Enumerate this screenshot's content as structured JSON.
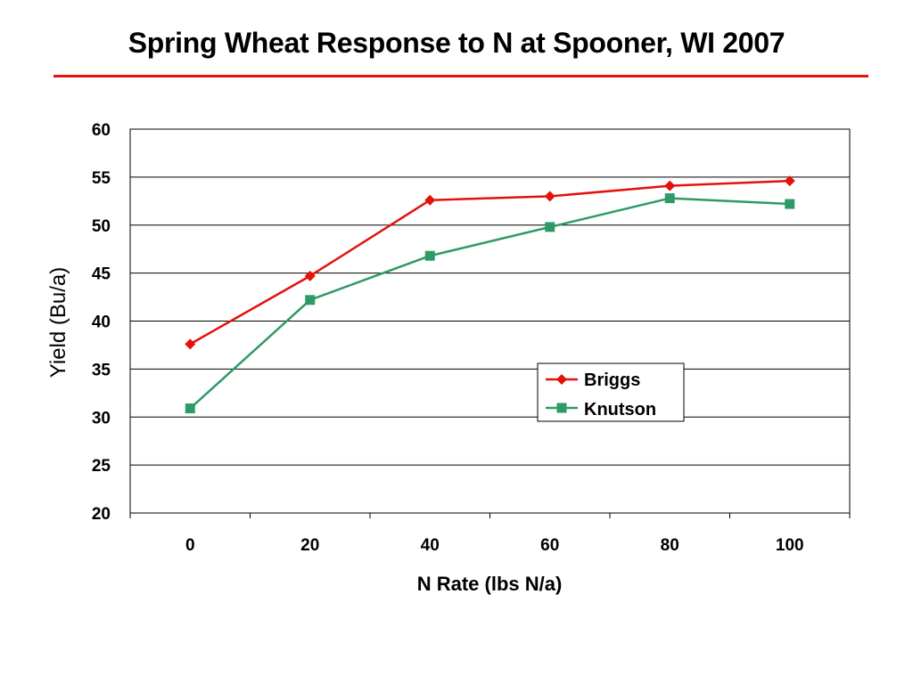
{
  "title": "Spring Wheat Response to N at Spooner, WI 2007",
  "colors": {
    "title_rule": "#e3120b",
    "Briggs": "#e3120b",
    "Knutson": "#2e9a66"
  },
  "chart_data": {
    "type": "line",
    "title": "Spring Wheat Response to N at Spooner, WI 2007",
    "xlabel": "N Rate (lbs N/a)",
    "ylabel": "Yield (Bu/a)",
    "x": [
      0,
      20,
      40,
      60,
      80,
      100
    ],
    "x_tick_labels": [
      "0",
      "20",
      "40",
      "60",
      "80",
      "100"
    ],
    "y_tick_labels": [
      "20",
      "25",
      "30",
      "35",
      "40",
      "45",
      "50",
      "55",
      "60"
    ],
    "ylim": [
      20,
      60
    ],
    "grid": "horizontal",
    "legend_position": "right-center",
    "series": [
      {
        "name": "Briggs",
        "marker": "diamond",
        "values": [
          37.6,
          44.7,
          52.6,
          53.0,
          54.1,
          54.6
        ]
      },
      {
        "name": "Knutson",
        "marker": "square",
        "values": [
          30.9,
          42.2,
          46.8,
          49.8,
          52.8,
          52.2
        ]
      }
    ]
  }
}
